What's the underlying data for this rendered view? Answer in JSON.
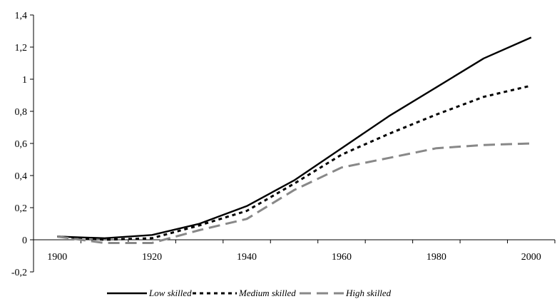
{
  "chart_data": {
    "type": "line",
    "title": "",
    "xlabel": "",
    "ylabel": "",
    "x": [
      1900,
      1910,
      1920,
      1930,
      1940,
      1950,
      1960,
      1970,
      1980,
      1990,
      2000
    ],
    "x_ticks": [
      1900,
      1920,
      1940,
      1960,
      1980,
      2000
    ],
    "x_tick_labels": [
      "1900",
      "1920",
      "1940",
      "1960",
      "1980",
      "2000"
    ],
    "y_ticks": [
      -0.2,
      0,
      0.2,
      0.4,
      0.6,
      0.8,
      1,
      1.2,
      1.4
    ],
    "y_tick_labels": [
      "-0,2",
      "0",
      "0,2",
      "0,4",
      "0,6",
      "0,8",
      "1",
      "1,2",
      "1,4"
    ],
    "xlim": [
      1895,
      2005
    ],
    "ylim": [
      -0.2,
      1.4
    ],
    "grid": false,
    "legend_position": "bottom",
    "series": [
      {
        "name": "Low skilled",
        "color": "#000000",
        "style": "solid",
        "values": [
          0.02,
          0.01,
          0.03,
          0.1,
          0.21,
          0.37,
          0.57,
          0.77,
          0.95,
          1.13,
          1.26
        ]
      },
      {
        "name": "Medium skilled",
        "color": "#000000",
        "style": "dotted",
        "values": [
          0.02,
          0.0,
          0.01,
          0.09,
          0.18,
          0.35,
          0.53,
          0.66,
          0.78,
          0.89,
          0.96
        ]
      },
      {
        "name": "High skilled",
        "color": "#888888",
        "style": "dashed",
        "values": [
          0.02,
          -0.02,
          -0.02,
          0.06,
          0.13,
          0.31,
          0.45,
          0.51,
          0.57,
          0.59,
          0.6
        ]
      }
    ]
  }
}
